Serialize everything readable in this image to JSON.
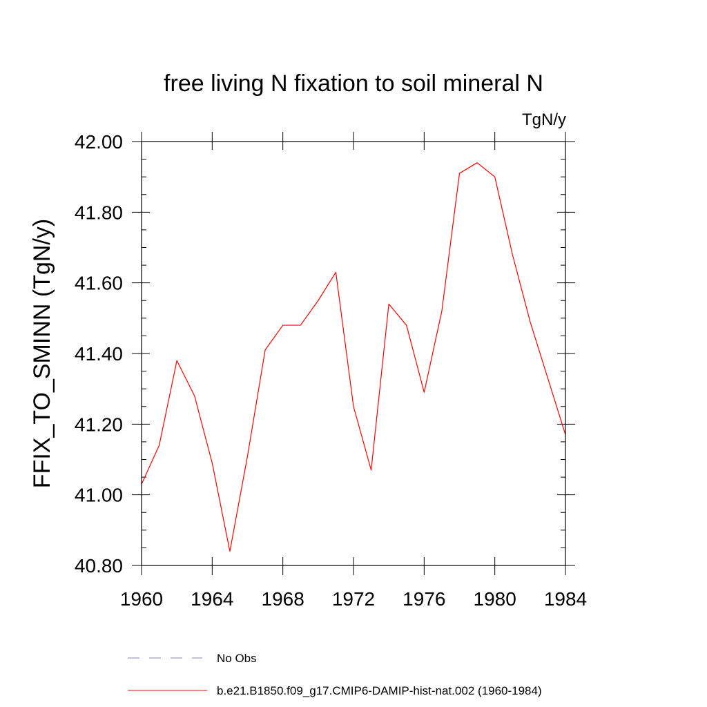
{
  "chart_data": {
    "type": "line",
    "title": "free living N fixation to soil mineral N",
    "units_label": "TgN/y",
    "ylabel": "FFIX_TO_SMINN  (TgN/y)",
    "xlabel": "",
    "xlim": [
      1960,
      1984
    ],
    "ylim": [
      40.8,
      42.0
    ],
    "x_ticks": [
      1960,
      1964,
      1968,
      1972,
      1976,
      1980,
      1984
    ],
    "x_tick_labels": [
      "1960",
      "1964",
      "1968",
      "1972",
      "1976",
      "1980",
      "1984"
    ],
    "y_ticks": [
      40.8,
      41.0,
      41.2,
      41.4,
      41.6,
      41.8,
      42.0
    ],
    "y_tick_labels": [
      "40.80",
      "41.00",
      "41.20",
      "41.40",
      "41.60",
      "41.80",
      "42.00"
    ],
    "grid": false,
    "legend_placement": "bottom",
    "series": [
      {
        "name": "b.e21.B1850.f09_g17.CMIP6-DAMIP-hist-nat.002 (1960-1984)",
        "color": "#ff0000",
        "style": "solid",
        "x": [
          1960,
          1961,
          1962,
          1963,
          1964,
          1965,
          1966,
          1967,
          1968,
          1969,
          1970,
          1971,
          1972,
          1973,
          1974,
          1975,
          1976,
          1977,
          1978,
          1979,
          1980,
          1981,
          1982,
          1983,
          1984
        ],
        "values": [
          41.03,
          41.14,
          41.38,
          41.28,
          41.09,
          40.84,
          41.11,
          41.41,
          41.48,
          41.48,
          41.55,
          41.63,
          41.25,
          41.07,
          41.54,
          41.48,
          41.29,
          41.52,
          41.91,
          41.94,
          41.9,
          41.68,
          41.49,
          41.33,
          41.17
        ]
      }
    ],
    "legend_items": [
      {
        "label": "No Obs",
        "color": "#8080c0",
        "style": "dashed"
      },
      {
        "label": "b.e21.B1850.f09_g17.CMIP6-DAMIP-hist-nat.002 (1960-1984)",
        "color": "#ff0000",
        "style": "solid"
      }
    ]
  }
}
